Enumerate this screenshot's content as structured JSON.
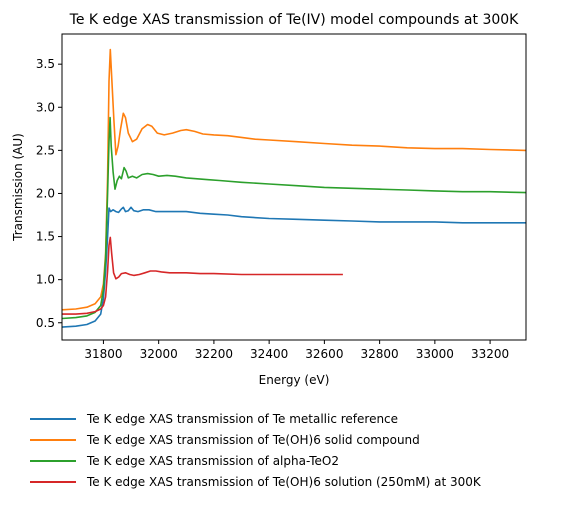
{
  "chart_data": {
    "type": "line",
    "title": "Te K edge XAS transmission of Te(IV) model compounds at 300K",
    "xlabel": "Energy (eV)",
    "ylabel": "Transmission (AU)",
    "xlim": [
      31650,
      33330
    ],
    "ylim": [
      0.3,
      3.85
    ],
    "xticks": [
      "31800",
      "32000",
      "32200",
      "32400",
      "32600",
      "32800",
      "33000",
      "33200"
    ],
    "yticks": [
      "0.5",
      "1.0",
      "1.5",
      "2.0",
      "2.5",
      "3.0",
      "3.5"
    ],
    "grid": false,
    "legend_placement": "below",
    "series": [
      {
        "name": "Te K edge XAS transmission of Te metallic reference",
        "color": "#1f77b4",
        "points": [
          [
            31650,
            0.45
          ],
          [
            31700,
            0.46
          ],
          [
            31740,
            0.48
          ],
          [
            31770,
            0.52
          ],
          [
            31790,
            0.6
          ],
          [
            31800,
            0.78
          ],
          [
            31808,
            1.1
          ],
          [
            31815,
            1.5
          ],
          [
            31820,
            1.83
          ],
          [
            31826,
            1.79
          ],
          [
            31835,
            1.81
          ],
          [
            31845,
            1.79
          ],
          [
            31855,
            1.78
          ],
          [
            31865,
            1.82
          ],
          [
            31872,
            1.84
          ],
          [
            31880,
            1.79
          ],
          [
            31890,
            1.8
          ],
          [
            31900,
            1.84
          ],
          [
            31910,
            1.8
          ],
          [
            31925,
            1.79
          ],
          [
            31945,
            1.81
          ],
          [
            31965,
            1.81
          ],
          [
            31990,
            1.79
          ],
          [
            32020,
            1.79
          ],
          [
            32060,
            1.79
          ],
          [
            32100,
            1.79
          ],
          [
            32150,
            1.77
          ],
          [
            32200,
            1.76
          ],
          [
            32250,
            1.75
          ],
          [
            32300,
            1.73
          ],
          [
            32400,
            1.71
          ],
          [
            32500,
            1.7
          ],
          [
            32600,
            1.69
          ],
          [
            32700,
            1.68
          ],
          [
            32800,
            1.67
          ],
          [
            32900,
            1.67
          ],
          [
            33000,
            1.67
          ],
          [
            33100,
            1.66
          ],
          [
            33200,
            1.66
          ],
          [
            33330,
            1.66
          ]
        ]
      },
      {
        "name": "Te K edge XAS transmission of Te(OH)6 solid compound",
        "color": "#ff7f0e",
        "points": [
          [
            31650,
            0.65
          ],
          [
            31700,
            0.66
          ],
          [
            31740,
            0.68
          ],
          [
            31770,
            0.72
          ],
          [
            31790,
            0.8
          ],
          [
            31800,
            0.95
          ],
          [
            31808,
            1.3
          ],
          [
            31815,
            2.2
          ],
          [
            31820,
            3.3
          ],
          [
            31825,
            3.67
          ],
          [
            31830,
            3.35
          ],
          [
            31838,
            2.85
          ],
          [
            31845,
            2.45
          ],
          [
            31853,
            2.55
          ],
          [
            31862,
            2.75
          ],
          [
            31872,
            2.93
          ],
          [
            31880,
            2.88
          ],
          [
            31890,
            2.7
          ],
          [
            31905,
            2.6
          ],
          [
            31920,
            2.63
          ],
          [
            31940,
            2.75
          ],
          [
            31960,
            2.8
          ],
          [
            31975,
            2.78
          ],
          [
            31995,
            2.7
          ],
          [
            32020,
            2.68
          ],
          [
            32050,
            2.7
          ],
          [
            32080,
            2.73
          ],
          [
            32100,
            2.74
          ],
          [
            32130,
            2.72
          ],
          [
            32160,
            2.69
          ],
          [
            32200,
            2.68
          ],
          [
            32250,
            2.67
          ],
          [
            32300,
            2.65
          ],
          [
            32350,
            2.63
          ],
          [
            32400,
            2.62
          ],
          [
            32500,
            2.6
          ],
          [
            32600,
            2.58
          ],
          [
            32700,
            2.56
          ],
          [
            32800,
            2.55
          ],
          [
            32900,
            2.53
          ],
          [
            33000,
            2.52
          ],
          [
            33100,
            2.52
          ],
          [
            33200,
            2.51
          ],
          [
            33330,
            2.5
          ]
        ]
      },
      {
        "name": "Te K edge XAS transmission of alpha-TeO2",
        "color": "#2ca02c",
        "points": [
          [
            31650,
            0.55
          ],
          [
            31700,
            0.56
          ],
          [
            31740,
            0.58
          ],
          [
            31770,
            0.62
          ],
          [
            31790,
            0.7
          ],
          [
            31800,
            0.88
          ],
          [
            31808,
            1.25
          ],
          [
            31815,
            2.0
          ],
          [
            31820,
            2.6
          ],
          [
            31824,
            2.88
          ],
          [
            31828,
            2.55
          ],
          [
            31835,
            2.25
          ],
          [
            31842,
            2.05
          ],
          [
            31850,
            2.15
          ],
          [
            31858,
            2.2
          ],
          [
            31865,
            2.17
          ],
          [
            31875,
            2.3
          ],
          [
            31882,
            2.26
          ],
          [
            31890,
            2.18
          ],
          [
            31905,
            2.2
          ],
          [
            31920,
            2.18
          ],
          [
            31940,
            2.22
          ],
          [
            31960,
            2.23
          ],
          [
            31980,
            2.22
          ],
          [
            32000,
            2.2
          ],
          [
            32030,
            2.21
          ],
          [
            32060,
            2.2
          ],
          [
            32100,
            2.18
          ],
          [
            32140,
            2.17
          ],
          [
            32180,
            2.16
          ],
          [
            32220,
            2.15
          ],
          [
            32300,
            2.13
          ],
          [
            32400,
            2.11
          ],
          [
            32500,
            2.09
          ],
          [
            32600,
            2.07
          ],
          [
            32700,
            2.06
          ],
          [
            32800,
            2.05
          ],
          [
            32900,
            2.04
          ],
          [
            33000,
            2.03
          ],
          [
            33100,
            2.02
          ],
          [
            33200,
            2.02
          ],
          [
            33330,
            2.01
          ]
        ]
      },
      {
        "name": "Te K edge XAS transmission of Te(OH)6 solution (250mM) at 300K",
        "color": "#d62728",
        "points": [
          [
            31650,
            0.6
          ],
          [
            31700,
            0.6
          ],
          [
            31740,
            0.61
          ],
          [
            31770,
            0.63
          ],
          [
            31790,
            0.66
          ],
          [
            31800,
            0.7
          ],
          [
            31808,
            0.8
          ],
          [
            31815,
            1.1
          ],
          [
            31820,
            1.4
          ],
          [
            31825,
            1.49
          ],
          [
            31830,
            1.3
          ],
          [
            31837,
            1.08
          ],
          [
            31845,
            1.01
          ],
          [
            31855,
            1.03
          ],
          [
            31865,
            1.07
          ],
          [
            31880,
            1.08
          ],
          [
            31895,
            1.06
          ],
          [
            31910,
            1.05
          ],
          [
            31930,
            1.06
          ],
          [
            31950,
            1.08
          ],
          [
            31970,
            1.1
          ],
          [
            31990,
            1.1
          ],
          [
            32010,
            1.09
          ],
          [
            32040,
            1.08
          ],
          [
            32070,
            1.08
          ],
          [
            32100,
            1.08
          ],
          [
            32150,
            1.07
          ],
          [
            32200,
            1.07
          ],
          [
            32300,
            1.06
          ],
          [
            32400,
            1.06
          ],
          [
            32500,
            1.06
          ],
          [
            32600,
            1.06
          ],
          [
            32667,
            1.06
          ]
        ]
      }
    ]
  }
}
